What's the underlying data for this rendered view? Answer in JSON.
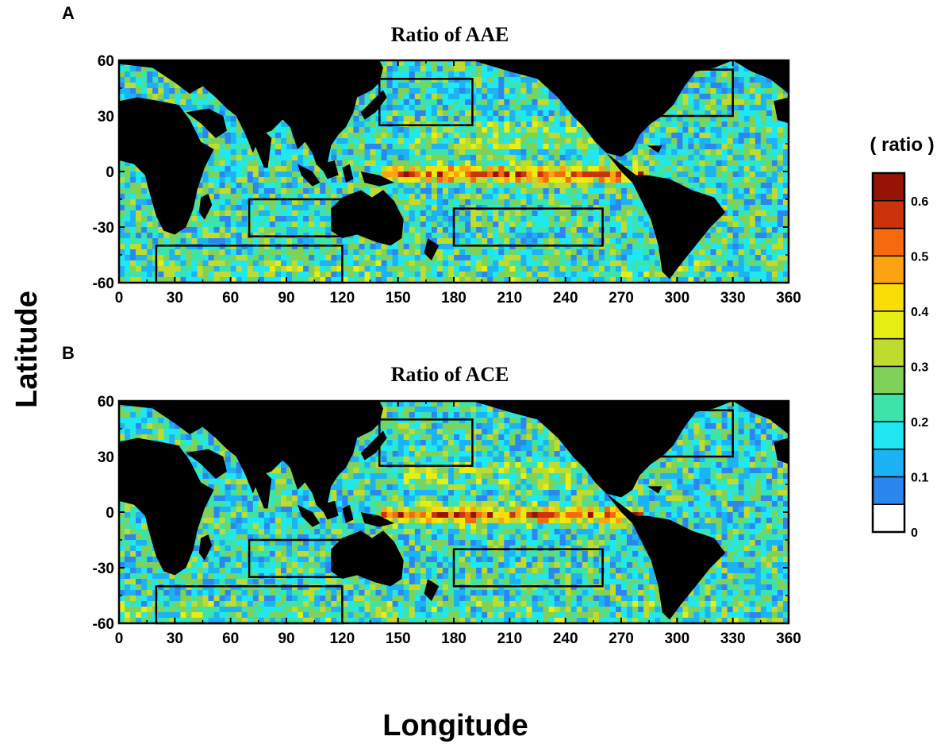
{
  "figure": {
    "x_axis_title": "Longitude",
    "y_axis_title": "Latitude"
  },
  "colorbar": {
    "title": "( ratio )",
    "labels": [
      "0.6",
      "0.5",
      "0.4",
      "0.3",
      "0.2",
      "0.1",
      "0"
    ],
    "label_values": [
      0.6,
      0.5,
      0.4,
      0.3,
      0.2,
      0.1,
      0
    ],
    "colors": [
      "#ffffff",
      "#2c86f0",
      "#1cb2f6",
      "#1fe8f2",
      "#3de3a9",
      "#7fd158",
      "#bfdc2e",
      "#e6ee14",
      "#f9dd07",
      "#fca311",
      "#f66a0c",
      "#cc3309",
      "#961306"
    ],
    "segment_min": [
      0,
      0.05,
      0.1,
      0.15,
      0.2,
      0.25,
      0.3,
      0.35,
      0.4,
      0.45,
      0.5,
      0.55,
      0.6
    ],
    "segment_max": [
      0.05,
      0.1,
      0.15,
      0.2,
      0.25,
      0.3,
      0.35,
      0.4,
      0.45,
      0.5,
      0.55,
      0.6,
      0.65
    ]
  },
  "panels": [
    {
      "letter": "A",
      "title": "Ratio of AAE",
      "x_ticks": [
        "0",
        "30",
        "60",
        "90",
        "120",
        "150",
        "180",
        "210",
        "240",
        "270",
        "300",
        "330",
        "360"
      ],
      "y_ticks": [
        "60",
        "30",
        "0",
        "-30",
        "-60"
      ],
      "x_range": [
        0,
        360
      ],
      "y_range": [
        -60,
        60
      ],
      "boxes": [
        {
          "lon": [
            140,
            190
          ],
          "lat": [
            25,
            50
          ]
        },
        {
          "lon": [
            280,
            330
          ],
          "lat": [
            30,
            55
          ]
        },
        {
          "lon": [
            70,
            120
          ],
          "lat": [
            -35,
            -15
          ]
        },
        {
          "lon": [
            180,
            260
          ],
          "lat": [
            -40,
            -20
          ]
        },
        {
          "lon": [
            20,
            120
          ],
          "lat": [
            -60,
            -40
          ]
        }
      ]
    },
    {
      "letter": "B",
      "title": "Ratio of ACE",
      "x_ticks": [
        "0",
        "30",
        "60",
        "90",
        "120",
        "150",
        "180",
        "210",
        "240",
        "270",
        "300",
        "330",
        "360"
      ],
      "y_ticks": [
        "60",
        "30",
        "0",
        "-30",
        "-60"
      ],
      "x_range": [
        0,
        360
      ],
      "y_range": [
        -60,
        60
      ],
      "boxes": [
        {
          "lon": [
            140,
            190
          ],
          "lat": [
            25,
            50
          ]
        },
        {
          "lon": [
            280,
            330
          ],
          "lat": [
            30,
            55
          ]
        },
        {
          "lon": [
            70,
            120
          ],
          "lat": [
            -35,
            -15
          ]
        },
        {
          "lon": [
            180,
            260
          ],
          "lat": [
            -40,
            -20
          ]
        },
        {
          "lon": [
            20,
            120
          ],
          "lat": [
            -60,
            -40
          ]
        }
      ]
    }
  ]
}
